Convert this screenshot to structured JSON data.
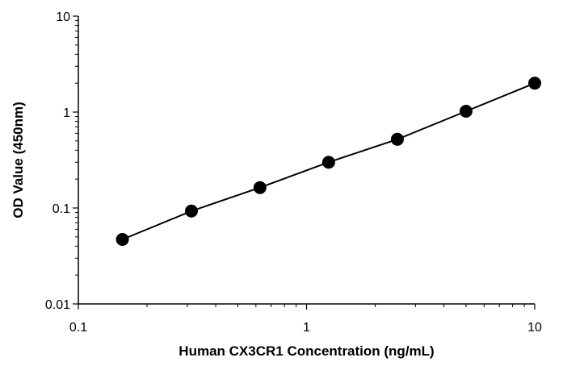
{
  "chart_data": {
    "type": "scatter",
    "xlabel": "Human CX3CR1 Concentration (ng/mL)",
    "ylabel": "OD Value (450nm)",
    "x_scale": "log",
    "y_scale": "log",
    "xlim": [
      0.1,
      10
    ],
    "ylim": [
      0.01,
      10
    ],
    "x_ticks": [
      "0.1",
      "1",
      "10"
    ],
    "y_ticks": [
      "0.01",
      "0.1",
      "1",
      "10"
    ],
    "grid": false,
    "legend": "none",
    "series": [
      {
        "x": [
          0.156,
          0.313,
          0.625,
          1.25,
          2.5,
          5,
          10
        ],
        "y": [
          0.047,
          0.093,
          0.163,
          0.3,
          0.52,
          1.02,
          2.0
        ]
      }
    ],
    "colors": {
      "marker": "#000000",
      "line": "#000000",
      "axis": "#000000"
    }
  }
}
